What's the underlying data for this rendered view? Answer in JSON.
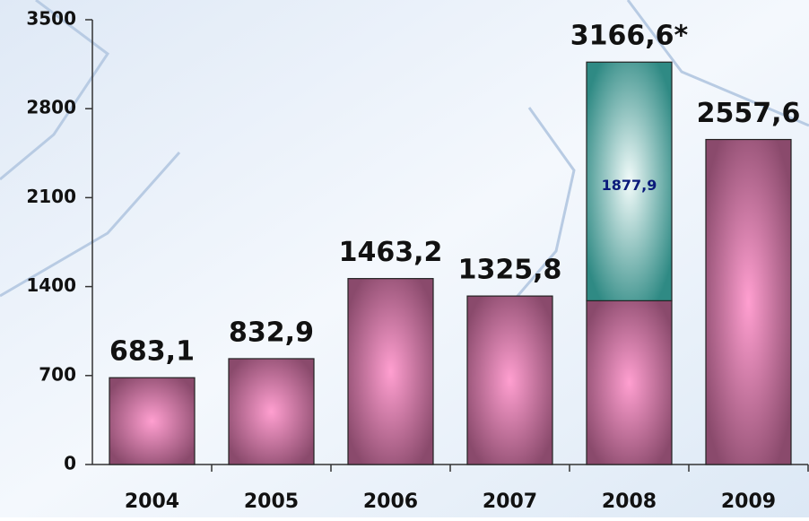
{
  "chart_data": {
    "type": "stacked_bar",
    "categories": [
      "2004",
      "2005",
      "2006",
      "2007",
      "2008",
      "2009"
    ],
    "series": [
      {
        "color": "#b45a8c",
        "values": [
          683.1,
          832.9,
          1463.2,
          1325.8,
          1288.7,
          2557.6
        ],
        "value_labels": [
          "683,1",
          "832,9",
          "1463,2",
          "1325,8",
          null,
          "2557,6"
        ]
      },
      {
        "color": "#2f8a84",
        "values": [
          null,
          null,
          null,
          null,
          1877.9,
          null
        ],
        "value_labels": [
          null,
          null,
          null,
          null,
          "1877,9",
          null
        ]
      }
    ],
    "total_labels": [
      null,
      null,
      null,
      null,
      "3166,6*",
      null
    ],
    "ylim": [
      0,
      3500
    ],
    "yticks": [
      0,
      700,
      1400,
      2100,
      2800,
      3500
    ],
    "grid": false
  }
}
